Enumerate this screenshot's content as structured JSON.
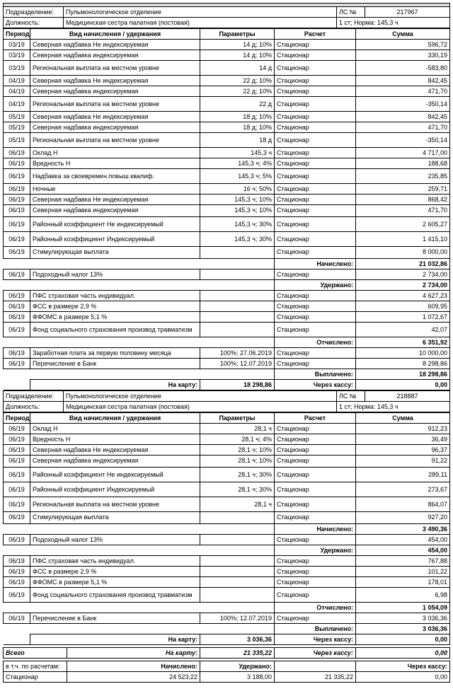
{
  "section1": {
    "dept_label": "Подразделение:",
    "dept": "Пульмонологическое отделение",
    "ls_label": "ЛС №",
    "ls_no": "217967",
    "job_label": "Должность:",
    "job": "Медицинская сестра палатная (постовая)",
    "norm": "1 ст; Норма: 145,3 ч",
    "headers": {
      "period": "Период",
      "name": "Вид начисления / удержания",
      "param": "Параметры",
      "calc": "Расчет",
      "sum": "Сумма"
    },
    "rows": [
      [
        "03/19",
        "Северная надбавка Не индексируемая",
        "14 д; 10%",
        "Стационар",
        "596,72"
      ],
      [
        "03/19",
        "Северная надбавка  индексируемая",
        "14 д; 10%",
        "Стационар",
        "330,19"
      ],
      [
        "03/19",
        "Региональная выплата на местном уровне",
        "14 д",
        "Стационар",
        "-583,80"
      ],
      [
        "04/19",
        "Северная надбавка Не индексируемая",
        "22 д; 10%",
        "Стационар",
        "842,45"
      ],
      [
        "04/19",
        "Северная надбавка  индексируемая",
        "22 д; 10%",
        "Стационар",
        "471,70"
      ],
      [
        "04/19",
        "Региональная выплата на местном уровне",
        "22 д",
        "Стационар",
        "-350,14"
      ],
      [
        "05/19",
        "Северная надбавка Не индексируемая",
        "18 д; 10%",
        "Стационар",
        "842,45"
      ],
      [
        "05/19",
        "Северная надбавка  индексируемая",
        "18 д; 10%",
        "Стационар",
        "471,70"
      ],
      [
        "05/19",
        "Региональная выплата на местном уровне",
        "18 д",
        "Стационар",
        "-350,14"
      ],
      [
        "06/19",
        "Оклад Н",
        "145,3 ч",
        "Стационар",
        "4 717,00"
      ],
      [
        "06/19",
        "Вредность Н",
        "145,3 ч; 4%",
        "Стационар",
        "188,68"
      ],
      [
        "06/19",
        "Надбавка за своевремен.повыш.квалиф.",
        "145,3 ч; 5%",
        "Стационар",
        "235,85"
      ],
      [
        "06/19",
        "Ночные",
        "16 ч; 50%",
        "Стационар",
        "259,71"
      ],
      [
        "06/19",
        "Северная надбавка Не индексируемая",
        "145,3 ч; 10%",
        "Стационар",
        "868,42"
      ],
      [
        "06/19",
        "Северная надбавка  индексируемая",
        "145,3 ч; 10%",
        "Стационар",
        "471,70"
      ],
      [
        "06/19",
        "Районный коэффициент Не индексируемый",
        "145,3 ч; 30%",
        "Стационар",
        "2 605,27"
      ],
      [
        "06/19",
        "Районный коэффициент Индексируемый",
        "145,3 ч; 30%",
        "Стационар",
        "1 415,10"
      ],
      [
        "06/19",
        "Стимулирующая выплата",
        "",
        "Стационар",
        "8 000,00"
      ]
    ],
    "accrued_label": "Начислено:",
    "accrued": "21 032,86",
    "tax_rows": [
      [
        "06/19",
        "Подоходный налог 13%",
        "",
        "Стационар",
        "2 734,00"
      ]
    ],
    "withheld_label": "Удержано:",
    "withheld": "2 734,00",
    "fund_rows": [
      [
        "06/19",
        "ПФС страховая часть индивидуал.",
        "",
        "Стационар",
        "4 627,23"
      ],
      [
        "06/19",
        "ФСС в размере 2,9 %",
        "",
        "Стационар",
        "609,95"
      ],
      [
        "06/19",
        "ФФОМС в  размере  5,1 %",
        "",
        "Стационар",
        "1 072,67"
      ],
      [
        "06/19",
        "Фонд социального страхования производ травматизм",
        "",
        "Стационар",
        "42,07"
      ]
    ],
    "deducted_label": "Отчислено:",
    "deducted": "6 351,92",
    "pay_rows": [
      [
        "06/19",
        "Заработная плата за первую половину месяца",
        "100%; 27.06.2019",
        "Стационар",
        "10 000,00"
      ],
      [
        "06/19",
        "Перечисление в Банк",
        "100%; 12.07.2019",
        "Стационар",
        "8 298,86"
      ]
    ],
    "paid_label": "Выплачено:",
    "paid": "18 298,86",
    "card_label": "На карту:",
    "card": "18 298,86",
    "cash_label": "Через кассу:",
    "cash": "0,00"
  },
  "section2": {
    "dept_label": "Подразделение:",
    "dept": "Пульмонологическое отделение",
    "ls_label": "ЛС №",
    "ls_no": "218887",
    "job_label": "Должность:",
    "job": "Медицинская сестра палатная (постовая)",
    "norm": "1 ст; Норма: 145,3 ч",
    "headers": {
      "period": "Период",
      "name": "Вид начисления / удержания",
      "param": "Параметры",
      "calc": "Расчет",
      "sum": "Сумма"
    },
    "rows": [
      [
        "06/19",
        "Оклад Н",
        "28,1 ч",
        "Стационар",
        "912,23"
      ],
      [
        "06/19",
        "Вредность Н",
        "28,1 ч; 4%",
        "Стационар",
        "36,49"
      ],
      [
        "06/19",
        "Северная надбавка Не индексируемая",
        "28,1 ч; 10%",
        "Стационар",
        "96,37"
      ],
      [
        "06/19",
        "Северная надбавка  индексируемая",
        "28,1 ч; 10%",
        "Стационар",
        "91,22"
      ],
      [
        "06/19",
        "Районный коэффициент Не индексируемый",
        "28,1 ч; 30%",
        "Стационар",
        "289,11"
      ],
      [
        "06/19",
        "Районный коэффициент Индексируемый",
        "28,1 ч; 30%",
        "Стационар",
        "273,67"
      ],
      [
        "06/19",
        "Региональная выплата на местном уровне",
        "28,1 ч",
        "Стационар",
        "864,07"
      ],
      [
        "06/19",
        "Стимулирующая выплата",
        "",
        "Стационар",
        "927,20"
      ]
    ],
    "accrued_label": "Начислено:",
    "accrued": "3 490,36",
    "tax_rows": [
      [
        "06/19",
        "Подоходный налог 13%",
        "",
        "Стационар",
        "454,00"
      ]
    ],
    "withheld_label": "Удержано:",
    "withheld": "454,00",
    "fund_rows": [
      [
        "06/19",
        "ПФС страховая часть индивидуал.",
        "",
        "Стационар",
        "767,88"
      ],
      [
        "06/19",
        "ФСС в размере 2,9 %",
        "",
        "Стационар",
        "101,22"
      ],
      [
        "06/19",
        "ФФОМС в  размере  5,1 %",
        "",
        "Стационар",
        "178,01"
      ],
      [
        "06/19",
        "Фонд социального страхования производ травматизм",
        "",
        "Стационар",
        "6,98"
      ]
    ],
    "deducted_label": "Отчислено:",
    "deducted": "1 054,09",
    "pay_rows": [
      [
        "06/19",
        "Перечисление в Банк",
        "100%; 12.07.2019",
        "Стационар",
        "3 036,36"
      ]
    ],
    "paid_label": "Выплачено:",
    "paid": "3 036,36",
    "card_label": "На карту:",
    "card": "3 036,36",
    "cash_label": "Через кассу:",
    "cash": "0,00"
  },
  "totals": {
    "total_label": "Всего",
    "card_label": "На карту:",
    "card": "21 335,22",
    "cash_label": "Через кассу:",
    "cash": "0,00",
    "calc_label": "в т.ч. по расчетам:",
    "hdr_accrued": "Начислено:",
    "hdr_withheld": "Удержано:",
    "hdr_cash": "Через кассу:",
    "row_name": "Стационар",
    "accrued": "24 523,22",
    "withheld": "3 188,00",
    "net": "21 335,22"
  }
}
